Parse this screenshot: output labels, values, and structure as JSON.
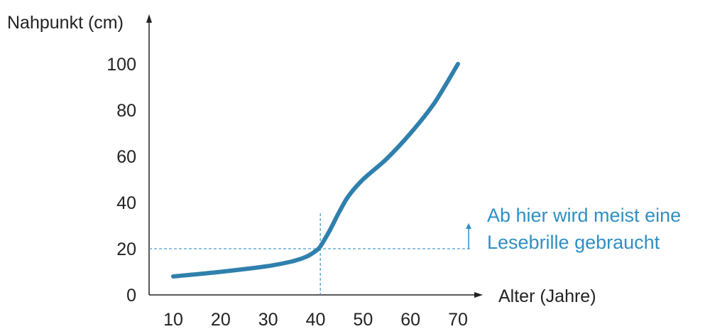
{
  "colors": {
    "curve": "#2f80ac",
    "reference": "#4a9bc7",
    "annotation": "#2f8fc4",
    "axis": "#222222"
  },
  "chart_data": {
    "type": "line",
    "title": "",
    "xlabel": "Alter (Jahre)",
    "ylabel": "Nahpunkt (cm)",
    "xlim": [
      5,
      73
    ],
    "ylim": [
      0,
      100
    ],
    "x_ticks": [
      10,
      20,
      30,
      40,
      50,
      60,
      70
    ],
    "y_ticks": [
      0,
      20,
      40,
      60,
      80,
      100
    ],
    "grid": false,
    "series": [
      {
        "x": [
          10,
          20,
          30,
          35,
          38,
          40,
          41,
          43,
          45,
          47,
          50,
          55,
          60,
          65,
          70
        ],
        "y": [
          8,
          10,
          12.5,
          14.5,
          16.5,
          19,
          21,
          28,
          36,
          43,
          50,
          59,
          70,
          83,
          100
        ]
      }
    ],
    "reference_lines": {
      "x": 41,
      "y": 20
    },
    "annotation": {
      "lines": [
        "Ab hier wird meist eine",
        "Lesebrille gebraucht"
      ],
      "arrow": "up"
    }
  }
}
